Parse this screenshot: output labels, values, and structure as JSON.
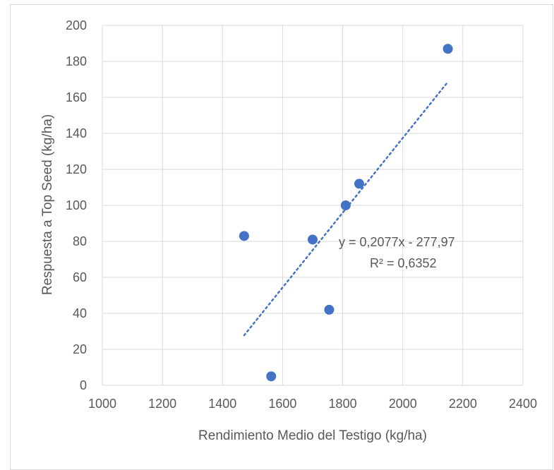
{
  "chart_data": {
    "type": "scatter",
    "title": "",
    "xlabel": "Rendimiento Medio del Testigo (kg/ha)",
    "ylabel": "Respuesta a Top Seed (kg/ha)",
    "xlim": [
      1000,
      2400
    ],
    "ylim": [
      0,
      200
    ],
    "xticks": [
      "1000",
      "1200",
      "1400",
      "1600",
      "1800",
      "2000",
      "2200",
      "2400"
    ],
    "yticks": [
      "0",
      "20",
      "40",
      "60",
      "80",
      "100",
      "120",
      "140",
      "160",
      "180",
      "200"
    ],
    "grid": true,
    "legend": "none",
    "series": [
      {
        "points": [
          {
            "x": 1472,
            "y": 83
          },
          {
            "x": 1562,
            "y": 5
          },
          {
            "x": 1700,
            "y": 81
          },
          {
            "x": 1755,
            "y": 42
          },
          {
            "x": 1810,
            "y": 100
          },
          {
            "x": 1855,
            "y": 112
          },
          {
            "x": 2150,
            "y": 187
          }
        ],
        "color": "#4472c4"
      }
    ],
    "trendline": {
      "type": "linear",
      "slope": 0.2077,
      "intercept": -277.97,
      "x_range": [
        1472,
        2150
      ],
      "color": "#4472c4",
      "equation_label": "y = 0,2077x - 277,97",
      "r2_label": "R² = 0,6352"
    }
  }
}
